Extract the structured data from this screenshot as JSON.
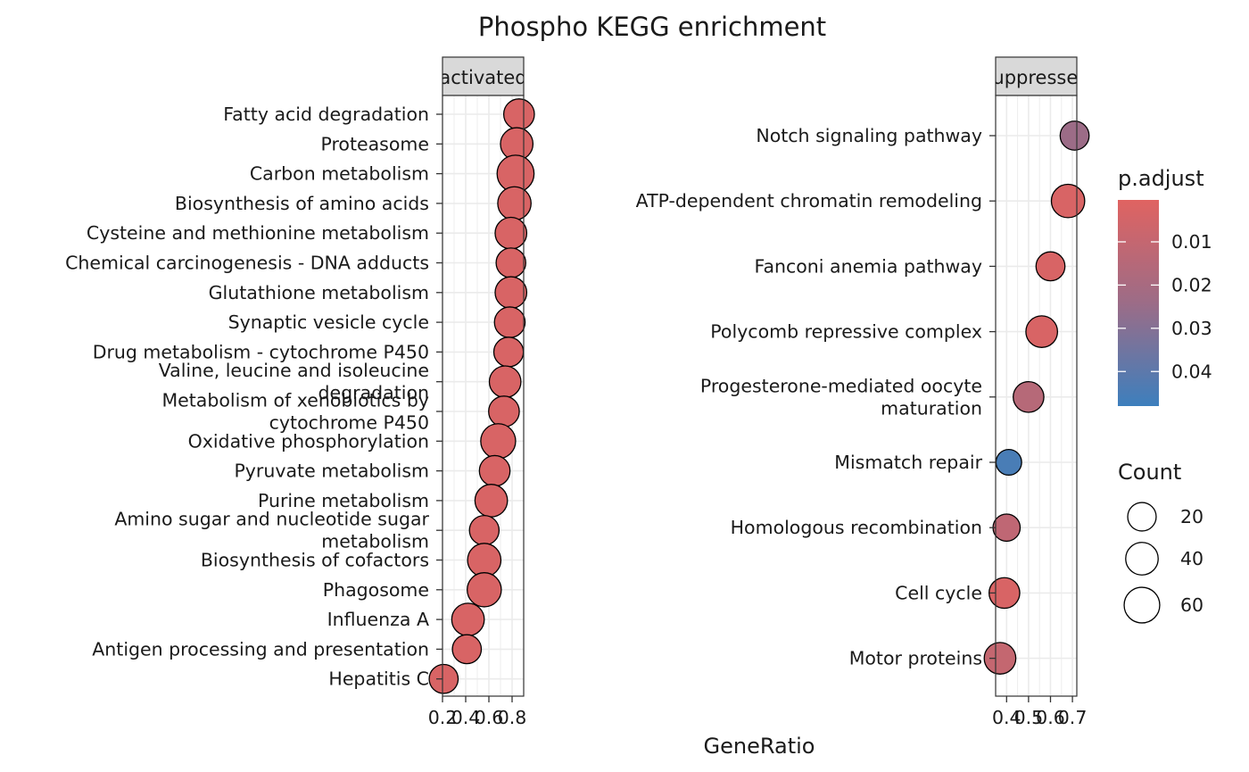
{
  "chart_data": {
    "type": "scatter",
    "title": "Phospho KEGG enrichment",
    "xlabel": "GeneRatio",
    "ylabel": "",
    "panels": [
      {
        "strip": "activated",
        "xlim": [
          0.2,
          0.9
        ],
        "x_ticks": [
          "0.2",
          "0.4",
          "0.6",
          "0.8"
        ],
        "x_tick_values": [
          0.2,
          0.4,
          0.6,
          0.8
        ],
        "points": [
          {
            "term": "Fatty acid degradation",
            "gene_ratio": 0.86,
            "count": 30,
            "p_adjust": 0.003
          },
          {
            "term": "Proteasome",
            "gene_ratio": 0.84,
            "count": 40,
            "p_adjust": 0.003
          },
          {
            "term": "Carbon metabolism",
            "gene_ratio": 0.83,
            "count": 70,
            "p_adjust": 0.003
          },
          {
            "term": "Biosynthesis of amino acids",
            "gene_ratio": 0.82,
            "count": 45,
            "p_adjust": 0.003
          },
          {
            "term": "Cysteine and methionine metabolism",
            "gene_ratio": 0.79,
            "count": 35,
            "p_adjust": 0.003
          },
          {
            "term": "Chemical carcinogenesis - DNA adducts",
            "gene_ratio": 0.79,
            "count": 25,
            "p_adjust": 0.003
          },
          {
            "term": "Glutathione metabolism",
            "gene_ratio": 0.79,
            "count": 35,
            "p_adjust": 0.003
          },
          {
            "term": "Synaptic vesicle cycle",
            "gene_ratio": 0.78,
            "count": 30,
            "p_adjust": 0.003
          },
          {
            "term": "Drug metabolism - cytochrome P450",
            "gene_ratio": 0.77,
            "count": 25,
            "p_adjust": 0.003
          },
          {
            "term": "Valine, leucine and isoleucine degradation",
            "gene_ratio": 0.74,
            "count": 35,
            "p_adjust": 0.003
          },
          {
            "term": "Metabolism of xenobiotics by cytochrome P450",
            "gene_ratio": 0.73,
            "count": 30,
            "p_adjust": 0.003
          },
          {
            "term": "Oxidative phosphorylation",
            "gene_ratio": 0.68,
            "count": 55,
            "p_adjust": 0.003
          },
          {
            "term": "Pyruvate metabolism",
            "gene_ratio": 0.65,
            "count": 30,
            "p_adjust": 0.003
          },
          {
            "term": "Purine metabolism",
            "gene_ratio": 0.62,
            "count": 40,
            "p_adjust": 0.003
          },
          {
            "term": "Amino sugar and nucleotide sugar metabolism",
            "gene_ratio": 0.56,
            "count": 25,
            "p_adjust": 0.003
          },
          {
            "term": "Biosynthesis of cofactors",
            "gene_ratio": 0.56,
            "count": 45,
            "p_adjust": 0.003
          },
          {
            "term": "Phagosome",
            "gene_ratio": 0.56,
            "count": 50,
            "p_adjust": 0.003
          },
          {
            "term": "Influenza A",
            "gene_ratio": 0.42,
            "count": 40,
            "p_adjust": 0.003
          },
          {
            "term": "Antigen processing and presentation",
            "gene_ratio": 0.41,
            "count": 22,
            "p_adjust": 0.003
          },
          {
            "term": "Hepatitis C",
            "gene_ratio": 0.21,
            "count": 22,
            "p_adjust": 0.003
          }
        ]
      },
      {
        "strip": "suppressed",
        "xlim": [
          0.35,
          0.72
        ],
        "x_ticks": [
          "0.4",
          "0.5",
          "0.6",
          "0.7"
        ],
        "x_tick_values": [
          0.4,
          0.5,
          0.6,
          0.7
        ],
        "points": [
          {
            "term": "Notch signaling pathway",
            "gene_ratio": 0.71,
            "count": 22,
            "p_adjust": 0.024
          },
          {
            "term": "ATP-dependent chromatin remodeling",
            "gene_ratio": 0.68,
            "count": 45,
            "p_adjust": 0.003
          },
          {
            "term": "Fanconi anemia pathway",
            "gene_ratio": 0.6,
            "count": 22,
            "p_adjust": 0.003
          },
          {
            "term": "Polycomb repressive complex",
            "gene_ratio": 0.56,
            "count": 35,
            "p_adjust": 0.003
          },
          {
            "term": "Progesterone-mediated oocyte maturation",
            "gene_ratio": 0.5,
            "count": 30,
            "p_adjust": 0.015
          },
          {
            "term": "Mismatch repair",
            "gene_ratio": 0.41,
            "count": 10,
            "p_adjust": 0.045
          },
          {
            "term": "Homologous recombination",
            "gene_ratio": 0.4,
            "count": 15,
            "p_adjust": 0.012
          },
          {
            "term": "Cell cycle",
            "gene_ratio": 0.39,
            "count": 30,
            "p_adjust": 0.003
          },
          {
            "term": "Motor proteins",
            "gene_ratio": 0.37,
            "count": 35,
            "p_adjust": 0.01
          }
        ]
      }
    ],
    "color_legend": {
      "title": "p.adjust",
      "ticks": [
        "0.01",
        "0.02",
        "0.03",
        "0.04"
      ],
      "tick_values": [
        0.01,
        0.02,
        0.03,
        0.04
      ],
      "range": [
        0.0003,
        0.048
      ],
      "low_color": "#e06361",
      "mid_color": "#9c6c87",
      "high_color": "#3d7fbd"
    },
    "size_legend": {
      "title": "Count",
      "entries": [
        "20",
        "40",
        "60"
      ],
      "values": [
        20,
        40,
        60
      ]
    },
    "grid": true,
    "legend_position": "right"
  }
}
